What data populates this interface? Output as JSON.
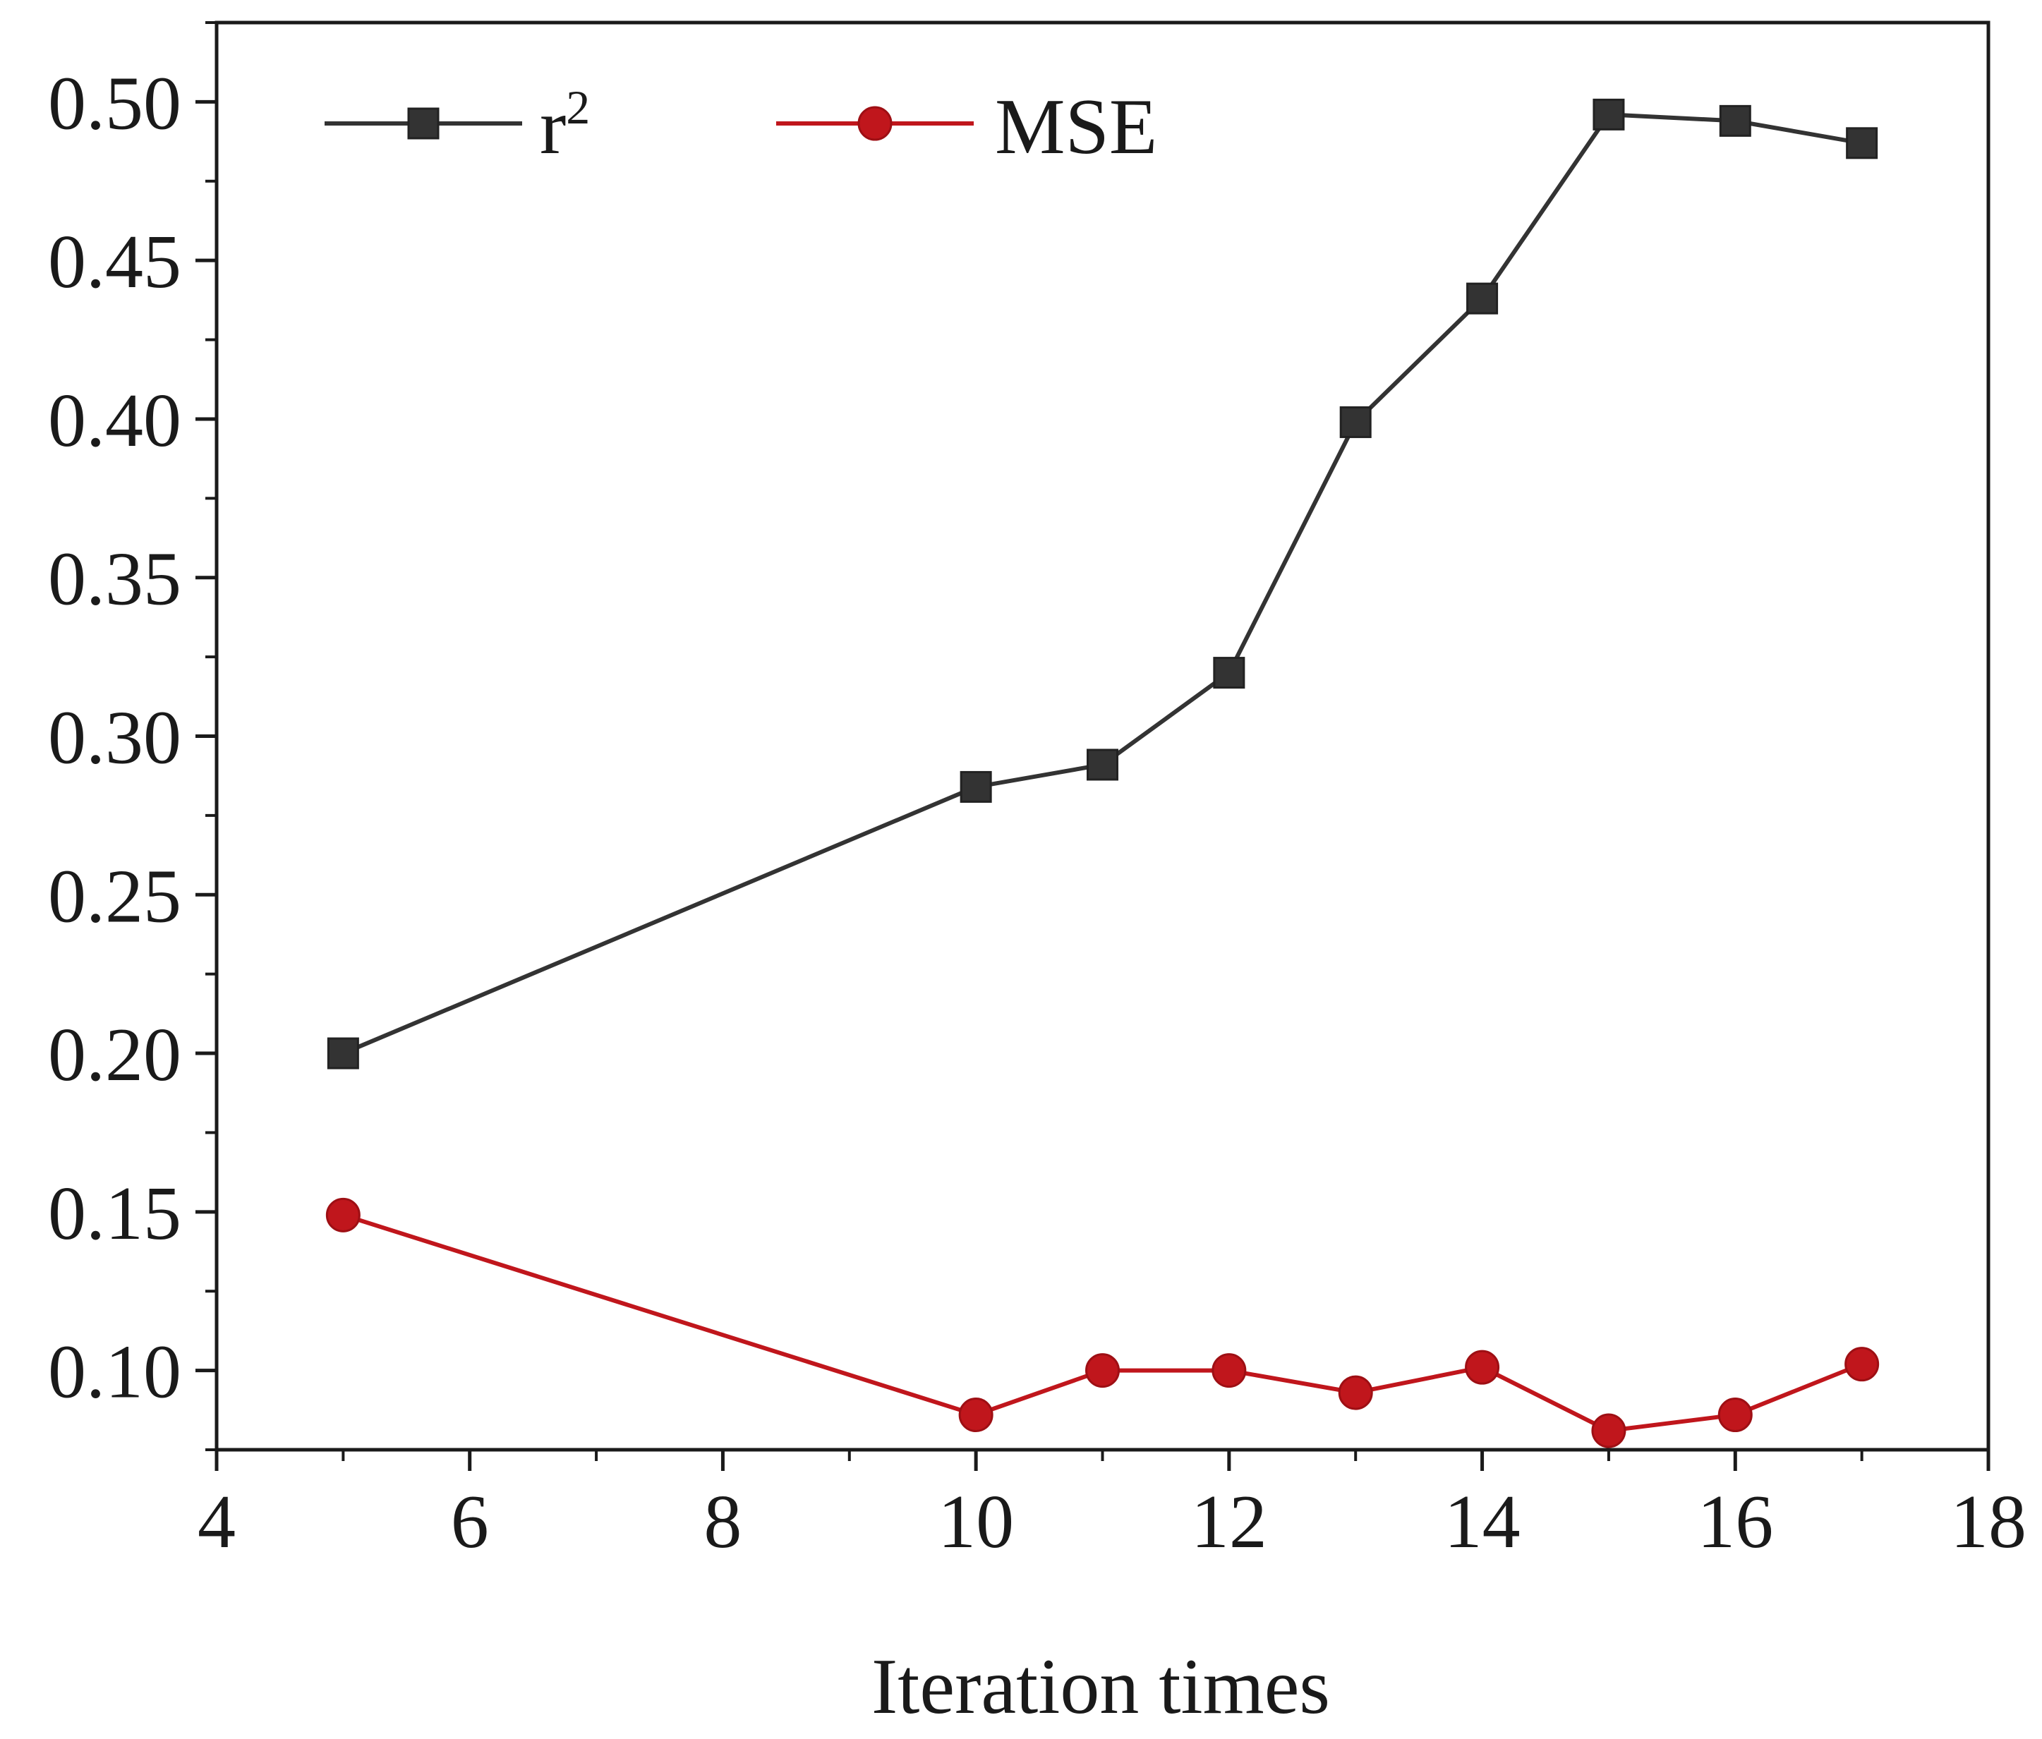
{
  "chart_data": {
    "type": "line",
    "title": "",
    "xlabel": "Iteration times",
    "ylabel": "",
    "xlim": [
      4,
      18
    ],
    "ylim": [
      0.075,
      0.525
    ],
    "x_ticks": [
      4,
      6,
      8,
      10,
      12,
      14,
      16,
      18
    ],
    "x_tick_labels": [
      "4",
      "6",
      "8",
      "10",
      "12",
      "14",
      "16",
      "18"
    ],
    "y_ticks": [
      0.1,
      0.15,
      0.2,
      0.25,
      0.3,
      0.35,
      0.4,
      0.45,
      0.5
    ],
    "y_tick_labels": [
      "0.10",
      "0.15",
      "0.20",
      "0.25",
      "0.30",
      "0.35",
      "0.40",
      "0.45",
      "0.50"
    ],
    "x": [
      5,
      10,
      11,
      12,
      13,
      14,
      15,
      16,
      17
    ],
    "series": [
      {
        "name": "r",
        "name_superscript": "2",
        "color": "#333333",
        "marker": "square",
        "values": [
          0.2,
          0.284,
          0.291,
          0.32,
          0.399,
          0.438,
          0.496,
          0.494,
          0.487
        ]
      },
      {
        "name": "MSE",
        "name_superscript": "",
        "color": "#c0161c",
        "marker": "circle",
        "values": [
          0.149,
          0.086,
          0.1,
          0.1,
          0.093,
          0.101,
          0.081,
          0.086,
          0.102
        ]
      }
    ],
    "legend_position": "top-left",
    "grid": false
  }
}
